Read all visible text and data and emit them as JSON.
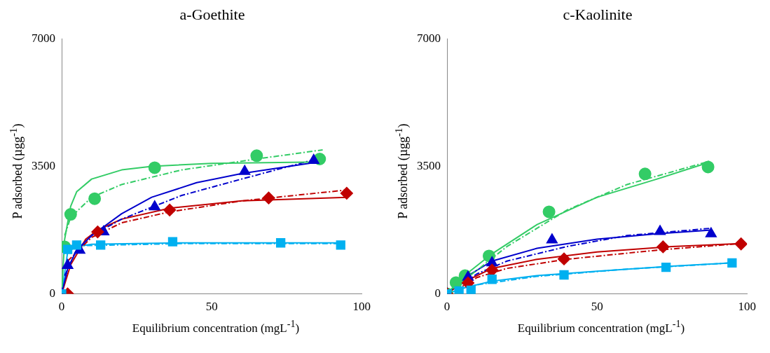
{
  "chart_data": [
    {
      "type": "scatter",
      "title": "a-Goethite",
      "xlabel": "Equilibrium concentration (mgL$^{-1}$)",
      "ylabel": "P adsorbed (µgg$^{-1}$)",
      "xlim": [
        0,
        100
      ],
      "xticks": [
        0,
        50,
        100
      ],
      "ylim": [
        0,
        7000
      ],
      "yticks": [
        0,
        3500,
        7000
      ],
      "series": [
        {
          "type": "line",
          "color": "#33cc66",
          "line_style": "solid",
          "marker": "none",
          "x": [
            0,
            1,
            3,
            5,
            10,
            20,
            30,
            50,
            86
          ],
          "values": [
            0,
            1500,
            2400,
            2800,
            3150,
            3400,
            3500,
            3580,
            3620
          ]
        },
        {
          "type": "line",
          "color": "#33cc66",
          "line_style": "dashed",
          "marker": "none",
          "x": [
            1,
            3,
            10,
            20,
            40,
            65,
            87
          ],
          "values": [
            1600,
            2100,
            2650,
            3000,
            3400,
            3700,
            3950
          ]
        },
        {
          "type": "line",
          "color": "#0000cc",
          "line_style": "solid",
          "marker": "none",
          "x": [
            0,
            2,
            5,
            10,
            20,
            30,
            45,
            60,
            84
          ],
          "values": [
            0,
            700,
            1200,
            1600,
            2200,
            2650,
            3050,
            3300,
            3600
          ]
        },
        {
          "type": "line",
          "color": "#0000cc",
          "line_style": "dashed",
          "marker": "none",
          "x": [
            1,
            5,
            10,
            20,
            40,
            60,
            85
          ],
          "values": [
            500,
            1200,
            1600,
            2050,
            2700,
            3150,
            3700
          ]
        },
        {
          "type": "line",
          "color": "#c00000",
          "line_style": "solid",
          "marker": "none",
          "x": [
            0,
            3,
            8,
            12,
            20,
            36,
            60,
            95
          ],
          "values": [
            0,
            800,
            1500,
            1750,
            2050,
            2350,
            2550,
            2650
          ]
        },
        {
          "type": "line",
          "color": "#c00000",
          "line_style": "dashed",
          "marker": "none",
          "x": [
            2,
            10,
            20,
            36,
            60,
            95
          ],
          "values": [
            900,
            1550,
            1950,
            2250,
            2550,
            2850
          ]
        },
        {
          "type": "line",
          "color": "#00b0f0",
          "line_style": "solid",
          "marker": "none",
          "x": [
            0,
            2,
            5,
            10,
            40,
            93
          ],
          "values": [
            0,
            1150,
            1300,
            1360,
            1400,
            1400
          ]
        },
        {
          "type": "line",
          "color": "#00b0f0",
          "line_style": "dashed",
          "marker": "none",
          "x": [
            1,
            5,
            40,
            93
          ],
          "values": [
            1250,
            1320,
            1380,
            1380
          ]
        },
        {
          "type": "scatter",
          "color": "#00b0f0",
          "marker": "square",
          "x": [
            0,
            2,
            5,
            13,
            37,
            73,
            93
          ],
          "values": [
            0,
            1220,
            1340,
            1340,
            1430,
            1400,
            1340
          ]
        },
        {
          "type": "scatter",
          "color": "#c00000",
          "marker": "diamond",
          "x": [
            2,
            12,
            36,
            69,
            95
          ],
          "values": [
            0,
            1700,
            2300,
            2630,
            2760
          ]
        },
        {
          "type": "scatter",
          "color": "#0000cc",
          "marker": "triangle",
          "x": [
            0,
            2,
            6,
            14,
            31,
            61,
            84
          ],
          "values": [
            0,
            780,
            1200,
            1700,
            2390,
            3360,
            3660
          ]
        },
        {
          "type": "scatter",
          "color": "#33cc66",
          "marker": "circle",
          "x": [
            1,
            3,
            11,
            31,
            65,
            86
          ],
          "values": [
            1290,
            2180,
            2610,
            3460,
            3790,
            3700
          ]
        }
      ]
    },
    {
      "type": "scatter",
      "title": "c-Kaolinite",
      "xlabel": "Equilibrium concentration (mgL$^{-1}$)",
      "ylabel": "P adsorbed (µgg$^{-1}$)",
      "xlim": [
        0,
        100
      ],
      "xticks": [
        0,
        50,
        100
      ],
      "ylim": [
        0,
        7000
      ],
      "yticks": [
        0,
        3500,
        7000
      ],
      "series": [
        {
          "type": "line",
          "color": "#33cc66",
          "line_style": "solid",
          "marker": "none",
          "x": [
            0,
            5,
            15,
            30,
            50,
            70,
            87
          ],
          "values": [
            0,
            450,
            1100,
            1900,
            2650,
            3150,
            3600
          ]
        },
        {
          "type": "line",
          "color": "#33cc66",
          "line_style": "dashed",
          "marker": "none",
          "x": [
            2,
            10,
            20,
            40,
            60,
            88
          ],
          "values": [
            150,
            650,
            1300,
            2300,
            3000,
            3650
          ]
        },
        {
          "type": "line",
          "color": "#0000cc",
          "line_style": "solid",
          "marker": "none",
          "x": [
            0,
            5,
            15,
            30,
            50,
            70,
            88
          ],
          "values": [
            0,
            400,
            900,
            1250,
            1500,
            1650,
            1750
          ]
        },
        {
          "type": "line",
          "color": "#0000cc",
          "line_style": "dashed",
          "marker": "none",
          "x": [
            3,
            10,
            20,
            40,
            60,
            88
          ],
          "values": [
            150,
            550,
            900,
            1300,
            1600,
            1800
          ]
        },
        {
          "type": "line",
          "color": "#c00000",
          "line_style": "solid",
          "marker": "none",
          "x": [
            0,
            5,
            15,
            30,
            50,
            75,
            98
          ],
          "values": [
            0,
            300,
            700,
            950,
            1150,
            1300,
            1380
          ]
        },
        {
          "type": "line",
          "color": "#c00000",
          "line_style": "dashed",
          "marker": "none",
          "x": [
            3,
            10,
            20,
            40,
            70,
            98
          ],
          "values": [
            100,
            450,
            700,
            950,
            1200,
            1380
          ]
        },
        {
          "type": "line",
          "color": "#00b0f0",
          "line_style": "solid",
          "marker": "none",
          "x": [
            0,
            5,
            15,
            30,
            50,
            75,
            95
          ],
          "values": [
            0,
            150,
            350,
            500,
            620,
            760,
            850
          ]
        },
        {
          "type": "line",
          "color": "#00b0f0",
          "line_style": "dashed",
          "marker": "none",
          "x": [
            3,
            10,
            30,
            60,
            95
          ],
          "values": [
            100,
            250,
            480,
            680,
            850
          ]
        },
        {
          "type": "scatter",
          "color": "#00b0f0",
          "marker": "square",
          "x": [
            0,
            4,
            8,
            15,
            39,
            73,
            95
          ],
          "values": [
            0,
            80,
            100,
            400,
            520,
            730,
            850
          ]
        },
        {
          "type": "scatter",
          "color": "#c00000",
          "marker": "diamond",
          "x": [
            0,
            4,
            7,
            15,
            39,
            72,
            98
          ],
          "values": [
            0,
            null,
            300,
            650,
            960,
            1290,
            1370
          ]
        },
        {
          "type": "scatter",
          "color": "#0000cc",
          "marker": "triangle",
          "x": [
            0,
            4,
            7,
            15,
            35,
            71,
            88
          ],
          "values": [
            0,
            null,
            460,
            850,
            1480,
            1710,
            1650
          ]
        },
        {
          "type": "scatter",
          "color": "#33cc66",
          "marker": "circle",
          "x": [
            0,
            3,
            6,
            14,
            34,
            66,
            87
          ],
          "values": [
            0,
            310,
            500,
            1040,
            2250,
            3290,
            3480
          ]
        }
      ]
    }
  ]
}
